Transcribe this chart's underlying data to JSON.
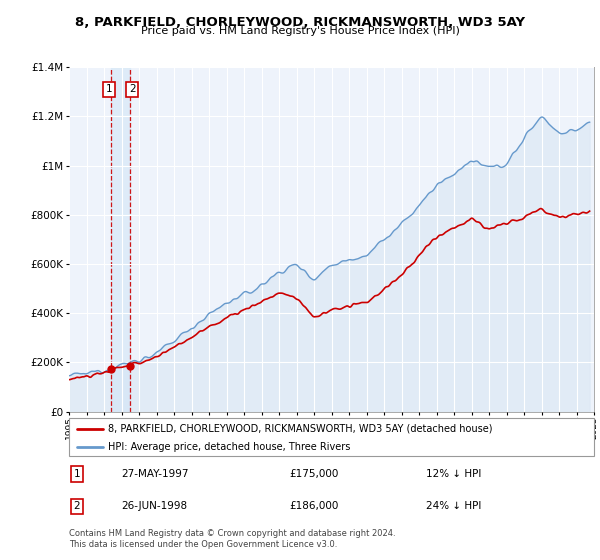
{
  "title": "8, PARKFIELD, CHORLEYWOOD, RICKMANSWORTH, WD3 5AY",
  "subtitle": "Price paid vs. HM Land Registry's House Price Index (HPI)",
  "legend_entry1": "8, PARKFIELD, CHORLEYWOOD, RICKMANSWORTH, WD3 5AY (detached house)",
  "legend_entry2": "HPI: Average price, detached house, Three Rivers",
  "transaction1_date": "27-MAY-1997",
  "transaction1_price": 175000,
  "transaction1_note": "12% ↓ HPI",
  "transaction2_date": "26-JUN-1998",
  "transaction2_price": 186000,
  "transaction2_note": "24% ↓ HPI",
  "footer": "Contains HM Land Registry data © Crown copyright and database right 2024.\nThis data is licensed under the Open Government Licence v3.0.",
  "red_color": "#cc0000",
  "blue_color": "#6699cc",
  "blue_fill": "#dce8f5",
  "background_color": "#eef3fb",
  "plot_bg": "#ffffff",
  "xmin": 1995,
  "xmax": 2025,
  "ymin": 0,
  "ymax": 1400000
}
